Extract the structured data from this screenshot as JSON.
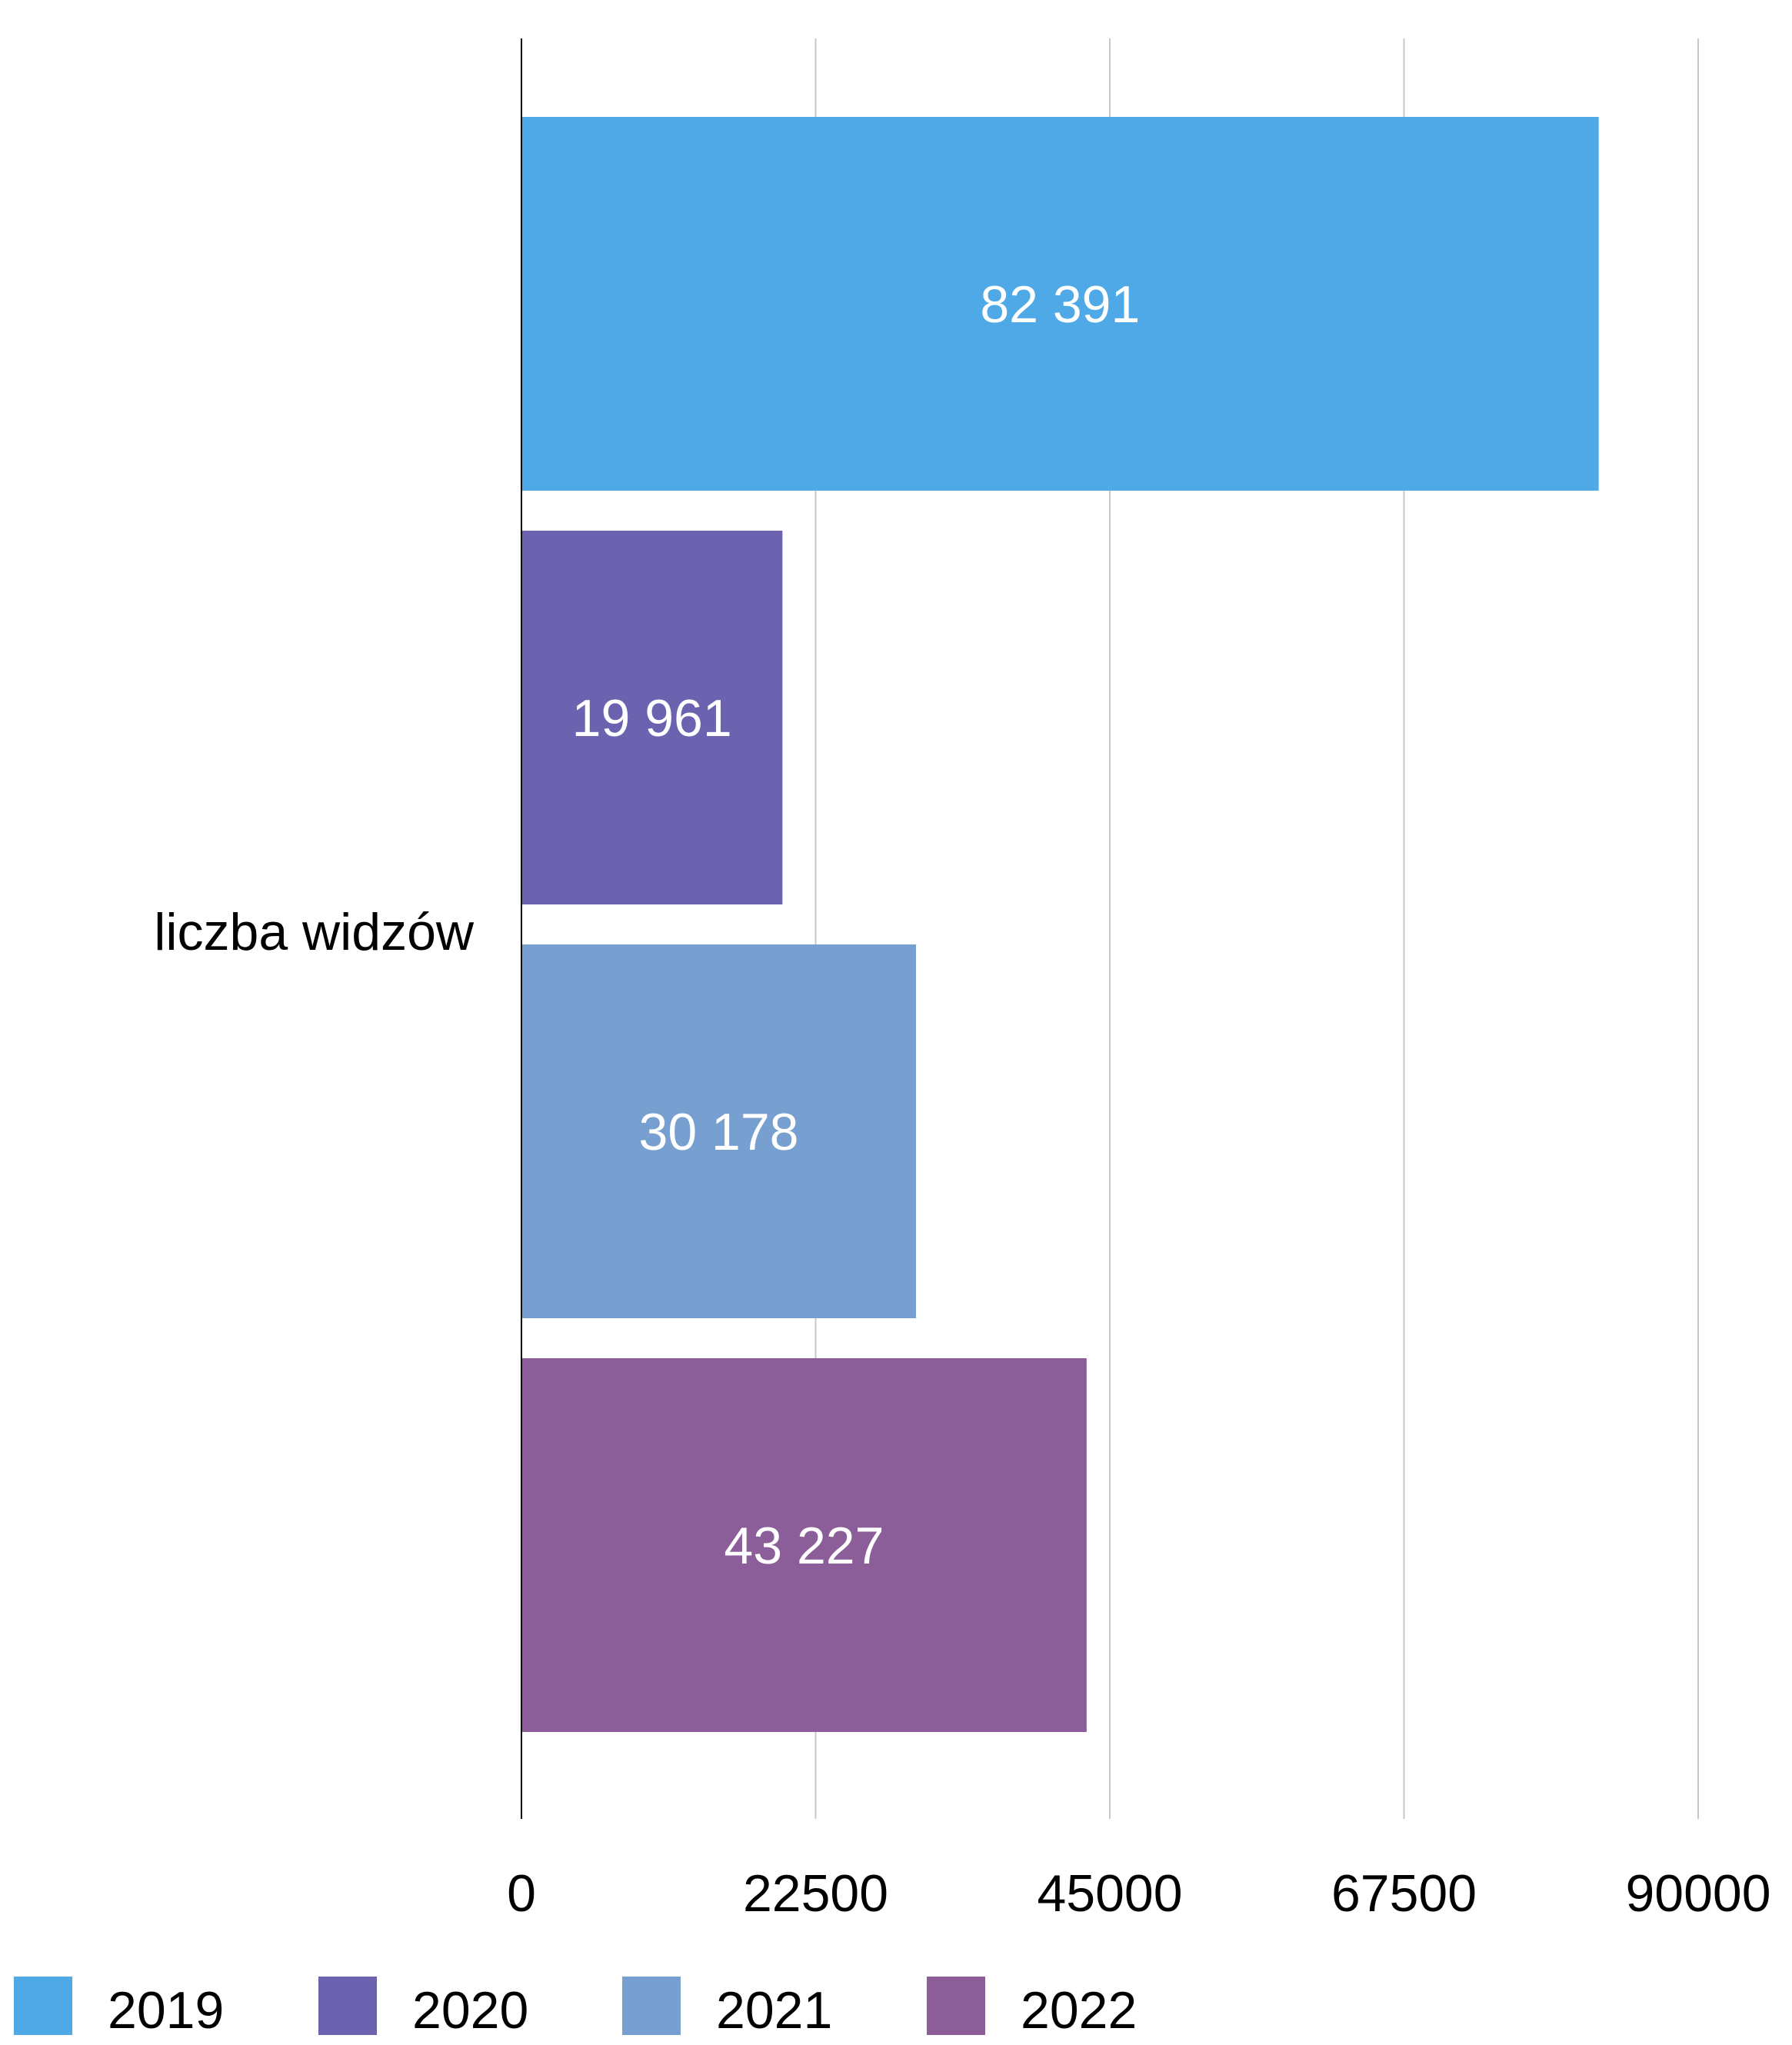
{
  "chart_data": {
    "type": "bar",
    "orientation": "horizontal",
    "categories": [
      "liczba widzów"
    ],
    "series": [
      {
        "name": "2019",
        "values": [
          82391
        ],
        "label": "82 391",
        "color": "#4FA9E6"
      },
      {
        "name": "2020",
        "values": [
          19961
        ],
        "label": "19 961",
        "color": "#6C63B0"
      },
      {
        "name": "2021",
        "values": [
          30178
        ],
        "label": "30 178",
        "color": "#779FD0"
      },
      {
        "name": "2022",
        "values": [
          43227
        ],
        "label": "43 227",
        "color": "#8B5E9A"
      }
    ],
    "x_ticks": [
      "0",
      "22500",
      "45000",
      "67500",
      "90000"
    ],
    "xlim": [
      0,
      90000
    ],
    "grid": true,
    "legend_position": "bottom",
    "title": "",
    "xlabel": "",
    "ylabel": ""
  }
}
